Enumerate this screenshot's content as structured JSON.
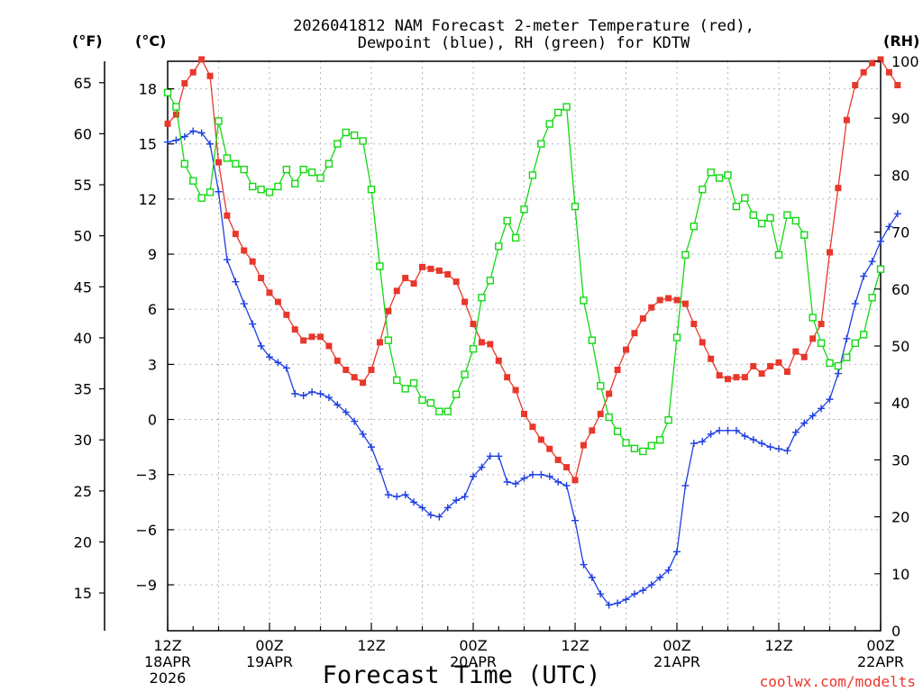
{
  "chart_data": {
    "type": "line",
    "title": [
      "2026041812 NAM Forecast 2-meter Temperature (red),",
      "Dewpoint (blue), RH (green) for KDTW"
    ],
    "xlabel": "Forecast Time (UTC)",
    "credit": "coolwx.com/modelts",
    "units": {
      "f": "(°F)",
      "c": "(°C)",
      "rh": "(RH)"
    },
    "x_range_hours": [
      0,
      84
    ],
    "celsius_axis": {
      "range": [
        -11.5,
        19.5
      ],
      "ticks": [
        -9,
        -6,
        -3,
        0,
        3,
        6,
        9,
        12,
        15,
        18
      ]
    },
    "fahrenheit_axis": {
      "ticks": [
        15,
        20,
        25,
        30,
        35,
        40,
        45,
        50,
        55,
        60,
        65
      ]
    },
    "rh_axis": {
      "range": [
        0,
        100
      ],
      "ticks": [
        0,
        10,
        20,
        30,
        40,
        50,
        60,
        70,
        80,
        90,
        100
      ]
    },
    "x_ticks": [
      {
        "hour": 0,
        "lines": [
          "12Z",
          "18APR",
          "2026"
        ]
      },
      {
        "hour": 12,
        "lines": [
          "00Z",
          "19APR"
        ]
      },
      {
        "hour": 24,
        "lines": [
          "12Z"
        ]
      },
      {
        "hour": 36,
        "lines": [
          "00Z",
          "20APR"
        ]
      },
      {
        "hour": 48,
        "lines": [
          "12Z"
        ]
      },
      {
        "hour": 60,
        "lines": [
          "00Z",
          "21APR"
        ]
      },
      {
        "hour": 72,
        "lines": [
          "12Z"
        ]
      },
      {
        "hour": 84,
        "lines": [
          "00Z",
          "22APR"
        ]
      }
    ],
    "series": [
      {
        "name": "Temperature",
        "unit": "°C",
        "axis": "c",
        "color": "#e8372b",
        "marker": "square-filled",
        "points": [
          [
            0,
            16.1
          ],
          [
            1,
            16.6
          ],
          [
            2,
            18.3
          ],
          [
            3,
            18.9
          ],
          [
            4,
            19.6
          ],
          [
            5,
            18.7
          ],
          [
            6,
            14.0
          ],
          [
            7,
            11.1
          ],
          [
            8,
            10.1
          ],
          [
            9,
            9.2
          ],
          [
            10,
            8.6
          ],
          [
            11,
            7.7
          ],
          [
            12,
            6.9
          ],
          [
            13,
            6.4
          ],
          [
            14,
            5.7
          ],
          [
            15,
            4.9
          ],
          [
            16,
            4.3
          ],
          [
            17,
            4.5
          ],
          [
            18,
            4.5
          ],
          [
            19,
            4.0
          ],
          [
            20,
            3.2
          ],
          [
            21,
            2.7
          ],
          [
            22,
            2.3
          ],
          [
            23,
            2.0
          ],
          [
            24,
            2.7
          ],
          [
            25,
            4.2
          ],
          [
            26,
            5.9
          ],
          [
            27,
            7.0
          ],
          [
            28,
            7.7
          ],
          [
            29,
            7.4
          ],
          [
            30,
            8.3
          ],
          [
            31,
            8.2
          ],
          [
            32,
            8.1
          ],
          [
            33,
            7.9
          ],
          [
            34,
            7.5
          ],
          [
            35,
            6.4
          ],
          [
            36,
            5.2
          ],
          [
            37,
            4.2
          ],
          [
            38,
            4.1
          ],
          [
            39,
            3.2
          ],
          [
            40,
            2.3
          ],
          [
            41,
            1.6
          ],
          [
            42,
            0.3
          ],
          [
            43,
            -0.4
          ],
          [
            44,
            -1.1
          ],
          [
            45,
            -1.6
          ],
          [
            46,
            -2.2
          ],
          [
            47,
            -2.6
          ],
          [
            48,
            -3.3
          ],
          [
            49,
            -1.4
          ],
          [
            50,
            -0.6
          ],
          [
            51,
            0.3
          ],
          [
            52,
            1.4
          ],
          [
            53,
            2.7
          ],
          [
            54,
            3.8
          ],
          [
            55,
            4.7
          ],
          [
            56,
            5.5
          ],
          [
            57,
            6.1
          ],
          [
            58,
            6.5
          ],
          [
            59,
            6.6
          ],
          [
            60,
            6.5
          ],
          [
            61,
            6.3
          ],
          [
            62,
            5.2
          ],
          [
            63,
            4.2
          ],
          [
            64,
            3.3
          ],
          [
            65,
            2.4
          ],
          [
            66,
            2.2
          ],
          [
            67,
            2.3
          ],
          [
            68,
            2.3
          ],
          [
            69,
            2.9
          ],
          [
            70,
            2.5
          ],
          [
            71,
            2.9
          ],
          [
            72,
            3.1
          ],
          [
            73,
            2.6
          ],
          [
            74,
            3.7
          ],
          [
            75,
            3.4
          ],
          [
            76,
            4.4
          ],
          [
            77,
            5.2
          ],
          [
            78,
            9.1
          ],
          [
            79,
            12.6
          ],
          [
            80,
            16.3
          ],
          [
            81,
            18.2
          ],
          [
            82,
            18.9
          ],
          [
            83,
            19.4
          ],
          [
            84,
            19.6
          ],
          [
            85,
            18.9
          ],
          [
            86,
            18.2
          ]
        ]
      },
      {
        "name": "Dewpoint",
        "unit": "°C",
        "axis": "c",
        "color": "#1f3fe0",
        "marker": "plus",
        "points": [
          [
            0,
            15.1
          ],
          [
            1,
            15.2
          ],
          [
            2,
            15.4
          ],
          [
            3,
            15.7
          ],
          [
            4,
            15.6
          ],
          [
            5,
            15.0
          ],
          [
            6,
            12.4
          ],
          [
            7,
            8.7
          ],
          [
            8,
            7.5
          ],
          [
            9,
            6.3
          ],
          [
            10,
            5.2
          ],
          [
            11,
            4.0
          ],
          [
            12,
            3.4
          ],
          [
            13,
            3.1
          ],
          [
            14,
            2.8
          ],
          [
            15,
            1.4
          ],
          [
            16,
            1.3
          ],
          [
            17,
            1.5
          ],
          [
            18,
            1.4
          ],
          [
            19,
            1.2
          ],
          [
            20,
            0.8
          ],
          [
            21,
            0.4
          ],
          [
            22,
            -0.1
          ],
          [
            23,
            -0.8
          ],
          [
            24,
            -1.5
          ],
          [
            25,
            -2.7
          ],
          [
            26,
            -4.1
          ],
          [
            27,
            -4.2
          ],
          [
            28,
            -4.1
          ],
          [
            29,
            -4.5
          ],
          [
            30,
            -4.8
          ],
          [
            31,
            -5.2
          ],
          [
            32,
            -5.3
          ],
          [
            33,
            -4.8
          ],
          [
            34,
            -4.4
          ],
          [
            35,
            -4.2
          ],
          [
            36,
            -3.1
          ],
          [
            37,
            -2.6
          ],
          [
            38,
            -2.0
          ],
          [
            39,
            -2.0
          ],
          [
            40,
            -3.4
          ],
          [
            41,
            -3.5
          ],
          [
            42,
            -3.2
          ],
          [
            43,
            -3.0
          ],
          [
            44,
            -3.0
          ],
          [
            45,
            -3.1
          ],
          [
            46,
            -3.4
          ],
          [
            47,
            -3.6
          ],
          [
            48,
            -5.5
          ],
          [
            49,
            -7.9
          ],
          [
            50,
            -8.6
          ],
          [
            51,
            -9.5
          ],
          [
            52,
            -10.1
          ],
          [
            53,
            -10.0
          ],
          [
            54,
            -9.8
          ],
          [
            55,
            -9.5
          ],
          [
            56,
            -9.3
          ],
          [
            57,
            -9.0
          ],
          [
            58,
            -8.6
          ],
          [
            59,
            -8.2
          ],
          [
            60,
            -7.2
          ],
          [
            61,
            -3.6
          ],
          [
            62,
            -1.3
          ],
          [
            63,
            -1.2
          ],
          [
            64,
            -0.8
          ],
          [
            65,
            -0.6
          ],
          [
            66,
            -0.6
          ],
          [
            67,
            -0.6
          ],
          [
            68,
            -0.9
          ],
          [
            69,
            -1.1
          ],
          [
            70,
            -1.3
          ],
          [
            71,
            -1.5
          ],
          [
            72,
            -1.6
          ],
          [
            73,
            -1.7
          ],
          [
            74,
            -0.7
          ],
          [
            75,
            -0.2
          ],
          [
            76,
            0.2
          ],
          [
            77,
            0.6
          ],
          [
            78,
            1.1
          ],
          [
            79,
            2.5
          ],
          [
            80,
            4.4
          ],
          [
            81,
            6.3
          ],
          [
            82,
            7.8
          ],
          [
            83,
            8.6
          ],
          [
            84,
            9.7
          ],
          [
            85,
            10.5
          ],
          [
            86,
            11.2
          ]
        ]
      },
      {
        "name": "RH",
        "unit": "%",
        "axis": "rh",
        "color": "#14d814",
        "marker": "square-open",
        "points": [
          [
            0,
            94.5
          ],
          [
            1,
            92.0
          ],
          [
            2,
            82.0
          ],
          [
            3,
            79.0
          ],
          [
            4,
            76.0
          ],
          [
            5,
            77.0
          ],
          [
            6,
            89.5
          ],
          [
            7,
            83.0
          ],
          [
            8,
            82.0
          ],
          [
            9,
            81.0
          ],
          [
            10,
            78.0
          ],
          [
            11,
            77.5
          ],
          [
            12,
            77.0
          ],
          [
            13,
            78.0
          ],
          [
            14,
            81.0
          ],
          [
            15,
            78.5
          ],
          [
            16,
            81.0
          ],
          [
            17,
            80.5
          ],
          [
            18,
            79.5
          ],
          [
            19,
            82.0
          ],
          [
            20,
            85.5
          ],
          [
            21,
            87.5
          ],
          [
            22,
            87.0
          ],
          [
            23,
            86.0
          ],
          [
            24,
            77.5
          ],
          [
            25,
            64.0
          ],
          [
            26,
            51.0
          ],
          [
            27,
            44.0
          ],
          [
            28,
            42.5
          ],
          [
            29,
            43.5
          ],
          [
            30,
            40.5
          ],
          [
            31,
            40.0
          ],
          [
            32,
            38.5
          ],
          [
            33,
            38.5
          ],
          [
            34,
            41.5
          ],
          [
            35,
            45.0
          ],
          [
            36,
            49.5
          ],
          [
            37,
            58.5
          ],
          [
            38,
            61.5
          ],
          [
            39,
            67.5
          ],
          [
            40,
            72.0
          ],
          [
            41,
            69.0
          ],
          [
            42,
            74.0
          ],
          [
            43,
            80.0
          ],
          [
            44,
            85.5
          ],
          [
            45,
            89.0
          ],
          [
            46,
            91.0
          ],
          [
            47,
            92.0
          ],
          [
            48,
            74.5
          ],
          [
            49,
            58.0
          ],
          [
            50,
            51.0
          ],
          [
            51,
            43.0
          ],
          [
            52,
            37.5
          ],
          [
            53,
            35.0
          ],
          [
            54,
            33.0
          ],
          [
            55,
            32.0
          ],
          [
            56,
            31.5
          ],
          [
            57,
            32.5
          ],
          [
            58,
            33.5
          ],
          [
            59,
            37.0
          ],
          [
            60,
            51.5
          ],
          [
            61,
            66.0
          ],
          [
            62,
            71.0
          ],
          [
            63,
            77.5
          ],
          [
            64,
            80.5
          ],
          [
            65,
            79.5
          ],
          [
            66,
            80.0
          ],
          [
            67,
            74.5
          ],
          [
            68,
            76.0
          ],
          [
            69,
            73.0
          ],
          [
            70,
            71.5
          ],
          [
            71,
            72.5
          ],
          [
            72,
            66.0
          ],
          [
            73,
            73.0
          ],
          [
            74,
            72.0
          ],
          [
            75,
            69.5
          ],
          [
            76,
            55.0
          ],
          [
            77,
            50.5
          ],
          [
            78,
            47.0
          ],
          [
            79,
            46.5
          ],
          [
            80,
            48.0
          ],
          [
            81,
            50.5
          ],
          [
            82,
            52.0
          ],
          [
            83,
            58.5
          ],
          [
            84,
            63.5
          ]
        ]
      }
    ]
  }
}
